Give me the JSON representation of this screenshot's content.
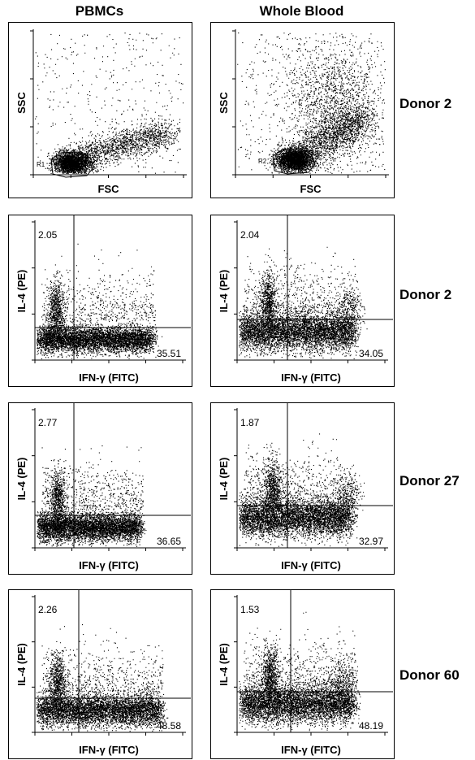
{
  "columns": [
    "PBMCs",
    "Whole Blood"
  ],
  "rows": [
    "Donor 2",
    "Donor 2",
    "Donor 27",
    "Donor 60"
  ],
  "chart_data": [
    {
      "type": "scatter",
      "title": "",
      "row": 0,
      "col": 0,
      "xlabel": "FSC",
      "ylabel": "SSC",
      "gate_label": "R1"
    },
    {
      "type": "scatter",
      "title": "",
      "row": 0,
      "col": 1,
      "xlabel": "FSC",
      "ylabel": "SSC",
      "gate_label": "R2"
    },
    {
      "type": "scatter",
      "title": "",
      "row": 1,
      "col": 0,
      "xlabel": "IFN-γ (FITC)",
      "ylabel": "IL-4 (PE)",
      "quadrant_values": {
        "upper_left": "2.05",
        "lower_right": "35.51"
      }
    },
    {
      "type": "scatter",
      "title": "",
      "row": 1,
      "col": 1,
      "xlabel": "IFN-γ (FITC)",
      "ylabel": "IL-4 (PE)",
      "quadrant_values": {
        "upper_left": "2.04",
        "lower_right": "34.05"
      }
    },
    {
      "type": "scatter",
      "title": "",
      "row": 2,
      "col": 0,
      "xlabel": "IFN-γ (FITC)",
      "ylabel": "IL-4 (PE)",
      "quadrant_values": {
        "upper_left": "2.77",
        "lower_right": "36.65"
      }
    },
    {
      "type": "scatter",
      "title": "",
      "row": 2,
      "col": 1,
      "xlabel": "IFN-γ (FITC)",
      "ylabel": "IL-4 (PE)",
      "quadrant_values": {
        "upper_left": "1.87",
        "lower_right": "32.97"
      }
    },
    {
      "type": "scatter",
      "title": "",
      "row": 3,
      "col": 0,
      "xlabel": "IFN-γ (FITC)",
      "ylabel": "IL-4 (PE)",
      "quadrant_values": {
        "upper_left": "2.26",
        "lower_right": "48.58"
      }
    },
    {
      "type": "scatter",
      "title": "",
      "row": 3,
      "col": 1,
      "xlabel": "IFN-γ (FITC)",
      "ylabel": "IL-4 (PE)",
      "quadrant_values": {
        "upper_left": "1.53",
        "lower_right": "48.19"
      }
    }
  ],
  "colors": {
    "ink": "#000000",
    "background": "#ffffff"
  }
}
